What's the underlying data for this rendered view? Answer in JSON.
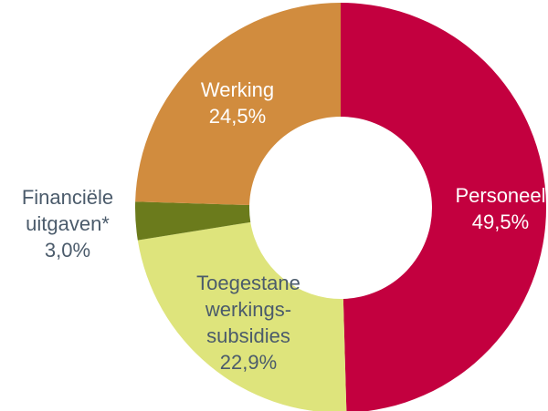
{
  "chart_data": {
    "type": "donut",
    "categories": [
      [
        "Personeel"
      ],
      [
        "Toegestane",
        "werkings-",
        "subsidies"
      ],
      [
        "Financiële",
        "uitgaven*"
      ],
      [
        "Werking"
      ]
    ],
    "values": [
      49.5,
      22.9,
      3.0,
      24.5
    ],
    "value_labels": [
      "49,5%",
      "22,9%",
      "3,0%",
      "24,5%"
    ],
    "colors": [
      "#c3003f",
      "#dee47c",
      "#6b7b1c",
      "#d18c3e"
    ],
    "label_colors": [
      "#ffffff",
      "#4b5b6b",
      "#4b5b6b",
      "#ffffff"
    ]
  }
}
